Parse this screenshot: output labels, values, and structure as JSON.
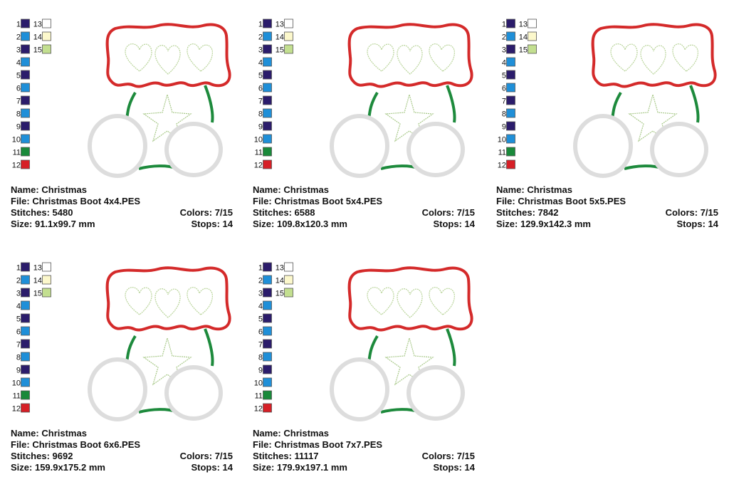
{
  "labels": {
    "name": "Name:",
    "file": "File:",
    "stitches": "Stitches:",
    "size": "Size:",
    "colors": "Colors:",
    "stops": "Stops:"
  },
  "thread_colors": [
    {
      "number": 1,
      "color": "#2b1c6b"
    },
    {
      "number": 2,
      "color": "#1f8fd8"
    },
    {
      "number": 3,
      "color": "#2b1c6b"
    },
    {
      "number": 4,
      "color": "#1f8fd8"
    },
    {
      "number": 5,
      "color": "#2b1c6b"
    },
    {
      "number": 6,
      "color": "#1f8fd8"
    },
    {
      "number": 7,
      "color": "#2b1c6b"
    },
    {
      "number": 8,
      "color": "#1f8fd8"
    },
    {
      "number": 9,
      "color": "#2b1c6b"
    },
    {
      "number": 10,
      "color": "#1f8fd8"
    },
    {
      "number": 11,
      "color": "#19893a"
    },
    {
      "number": 12,
      "color": "#d61f26"
    },
    {
      "number": 13,
      "color": "#ffffff"
    },
    {
      "number": 14,
      "color": "#fcf8cc"
    },
    {
      "number": 15,
      "color": "#c3df90"
    }
  ],
  "designs": [
    {
      "name": "Christmas",
      "file": "Christmas Boot 4x4.PES",
      "stitches": "5480",
      "size": "91.1x99.7 mm",
      "colors": "7/15",
      "stops": "14"
    },
    {
      "name": "Christmas",
      "file": "Christmas Boot 5x4.PES",
      "stitches": "6588",
      "size": "109.8x120.3 mm",
      "colors": "7/15",
      "stops": "14"
    },
    {
      "name": "Christmas",
      "file": "Christmas Boot 5x5.PES",
      "stitches": "7842",
      "size": "129.9x142.3 mm",
      "colors": "7/15",
      "stops": "14"
    },
    {
      "name": "Christmas",
      "file": "Christmas Boot 6x6.PES",
      "stitches": "9692",
      "size": "159.9x175.2 mm",
      "colors": "7/15",
      "stops": "14"
    },
    {
      "name": "Christmas",
      "file": "Christmas Boot 7x7.PES",
      "stitches": "11117",
      "size": "179.9x197.1 mm",
      "colors": "7/15",
      "stops": "14"
    }
  ]
}
